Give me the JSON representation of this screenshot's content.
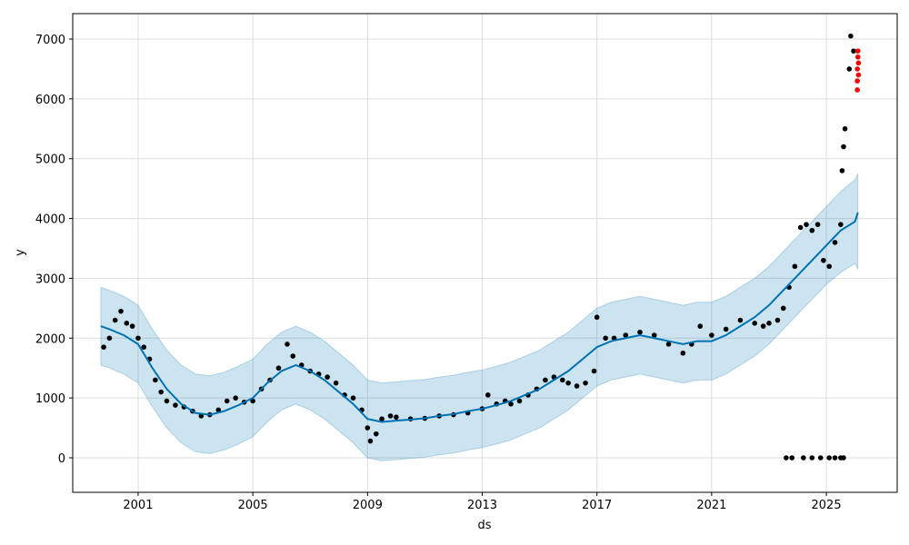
{
  "chart_data": {
    "type": "forecast",
    "xlabel": "ds",
    "ylabel": "y",
    "xlim": [
      1998.72,
      2027.47
    ],
    "ylim": [
      -577,
      7425
    ],
    "xticks": [
      2001,
      2005,
      2009,
      2013,
      2017,
      2021,
      2025
    ],
    "yticks": [
      0,
      1000,
      2000,
      3000,
      4000,
      5000,
      6000,
      7000
    ],
    "grid": true,
    "forecast": {
      "color": "#0072B2",
      "x": [
        1999.7,
        2000,
        2000.5,
        2001,
        2001.5,
        2002,
        2002.5,
        2003,
        2003.5,
        2004,
        2004.5,
        2005,
        2005.5,
        2006,
        2006.5,
        2007,
        2007.5,
        2008,
        2008.5,
        2009,
        2009.5,
        2010,
        2010.5,
        2011,
        2011.5,
        2012,
        2012.5,
        2013,
        2013.5,
        2014,
        2014.5,
        2015,
        2015.5,
        2016,
        2016.5,
        2017,
        2017.5,
        2018,
        2018.5,
        2019,
        2019.5,
        2020,
        2020.5,
        2021,
        2021.5,
        2022,
        2022.5,
        2023,
        2023.5,
        2024,
        2024.5,
        2025,
        2025.5,
        2026,
        2026.1
      ],
      "yhat": [
        2200,
        2150,
        2050,
        1900,
        1500,
        1150,
        900,
        750,
        720,
        780,
        880,
        1000,
        1250,
        1450,
        1550,
        1450,
        1300,
        1100,
        900,
        650,
        600,
        620,
        640,
        660,
        700,
        730,
        780,
        820,
        880,
        950,
        1050,
        1150,
        1300,
        1450,
        1650,
        1850,
        1950,
        2000,
        2050,
        2000,
        1950,
        1900,
        1950,
        1950,
        2050,
        2200,
        2350,
        2550,
        2800,
        3050,
        3300,
        3550,
        3800,
        3950,
        4100
      ],
      "yhat_lower": [
        1550,
        1500,
        1400,
        1250,
        850,
        500,
        250,
        100,
        70,
        130,
        230,
        350,
        600,
        800,
        900,
        800,
        650,
        450,
        250,
        0,
        -50,
        -30,
        -10,
        10,
        50,
        80,
        130,
        170,
        230,
        300,
        400,
        500,
        650,
        800,
        1000,
        1200,
        1300,
        1350,
        1400,
        1350,
        1300,
        1250,
        1300,
        1300,
        1400,
        1550,
        1700,
        1900,
        2150,
        2400,
        2650,
        2900,
        3100,
        3250,
        3150
      ],
      "yhat_upper": [
        2850,
        2800,
        2700,
        2550,
        2150,
        1800,
        1550,
        1400,
        1370,
        1430,
        1530,
        1650,
        1900,
        2100,
        2200,
        2100,
        1950,
        1750,
        1550,
        1300,
        1250,
        1270,
        1290,
        1310,
        1350,
        1380,
        1430,
        1470,
        1530,
        1600,
        1700,
        1800,
        1950,
        2100,
        2300,
        2500,
        2600,
        2650,
        2700,
        2650,
        2600,
        2550,
        2600,
        2600,
        2700,
        2850,
        3000,
        3200,
        3450,
        3700,
        3950,
        4200,
        4450,
        4650,
        4750
      ]
    },
    "actual": {
      "color": "#000000",
      "x": [
        1999.8,
        2000,
        2000.2,
        2000.4,
        2000.6,
        2000.8,
        2001,
        2001.2,
        2001.4,
        2001.6,
        2001.8,
        2002,
        2002.3,
        2002.6,
        2002.9,
        2003.2,
        2003.5,
        2003.8,
        2004.1,
        2004.4,
        2004.7,
        2005,
        2005.3,
        2005.6,
        2005.9,
        2006.2,
        2006.4,
        2006.7,
        2007,
        2007.3,
        2007.6,
        2007.9,
        2008.2,
        2008.5,
        2008.8,
        2009,
        2009.1,
        2009.3,
        2009.5,
        2009.8,
        2010,
        2010.5,
        2011,
        2011.5,
        2012,
        2012.5,
        2013,
        2013.2,
        2013.5,
        2013.8,
        2014,
        2014.3,
        2014.6,
        2014.9,
        2015.2,
        2015.5,
        2015.8,
        2016,
        2016.3,
        2016.6,
        2016.9,
        2017,
        2017.3,
        2017.6,
        2018,
        2018.5,
        2019,
        2019.5,
        2020,
        2020.3,
        2020.6,
        2021,
        2021.5,
        2022,
        2022.5,
        2022.8,
        2023,
        2023.3,
        2023.5,
        2023.7,
        2023.9,
        2024.1,
        2024.3,
        2024.5,
        2024.7,
        2024.9,
        2025.1,
        2025.3,
        2025.5,
        2025.55,
        2025.6,
        2025.65,
        2025.8,
        2025.85,
        2025.95,
        2023.6,
        2023.8,
        2024.2,
        2024.5,
        2024.8,
        2025.1,
        2025.3,
        2025.5,
        2025.6
      ],
      "values": [
        1850,
        2000,
        2300,
        2450,
        2250,
        2200,
        2000,
        1850,
        1650,
        1300,
        1100,
        950,
        880,
        850,
        780,
        700,
        720,
        800,
        950,
        1000,
        930,
        950,
        1150,
        1300,
        1500,
        1900,
        1700,
        1550,
        1450,
        1400,
        1350,
        1250,
        1050,
        1000,
        800,
        500,
        280,
        400,
        650,
        700,
        680,
        650,
        660,
        700,
        720,
        750,
        820,
        1050,
        900,
        950,
        900,
        950,
        1050,
        1150,
        1300,
        1350,
        1300,
        1250,
        1200,
        1250,
        1450,
        2350,
        2000,
        2000,
        2050,
        2100,
        2050,
        1900,
        1750,
        1900,
        2200,
        2050,
        2150,
        2300,
        2250,
        2200,
        2250,
        2300,
        2500,
        2850,
        3200,
        3850,
        3900,
        3800,
        3900,
        3300,
        3200,
        3600,
        3900,
        4800,
        5200,
        5500,
        6500,
        7050,
        6800,
        0,
        0,
        0,
        0,
        0,
        0,
        0,
        0,
        0
      ]
    },
    "outliers": {
      "color": "#ff0000",
      "x": [
        2026.08,
        2026.08,
        2026.08,
        2026.1,
        2026.1,
        2026.12,
        2026.12
      ],
      "values": [
        6150,
        6300,
        6500,
        6700,
        6800,
        6400,
        6600
      ]
    }
  }
}
